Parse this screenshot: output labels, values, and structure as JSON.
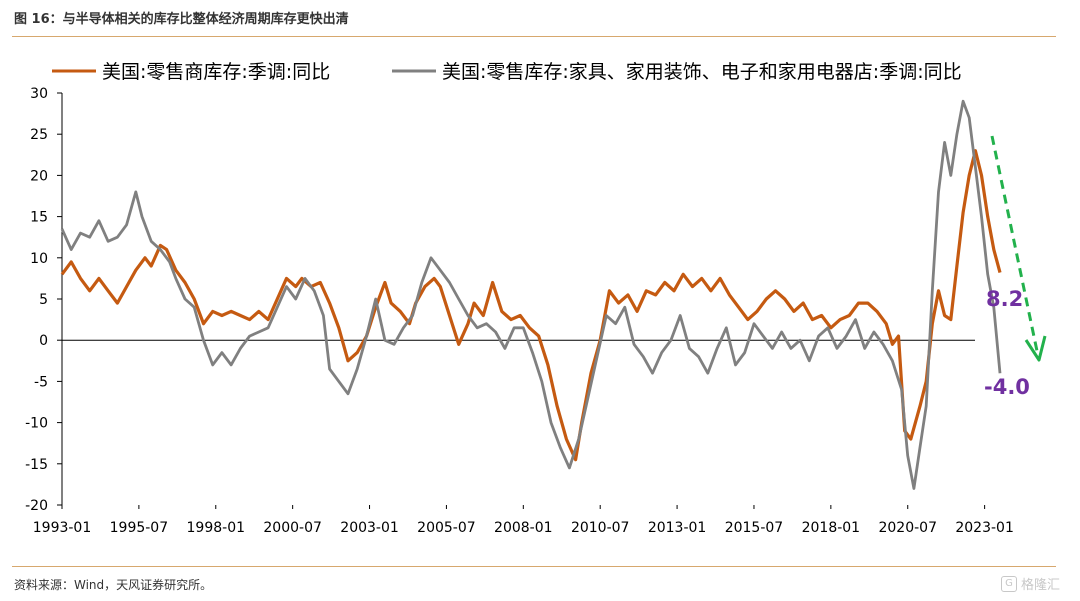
{
  "figure_title": "图 16：与半导体相关的库存比整体经济周期库存更快出清",
  "source": "资料来源：Wind，天风证券研究所。",
  "watermark": "格隆汇",
  "colors": {
    "series_orange": "#c55a11",
    "series_gray": "#808080",
    "arrow": "#22b14c",
    "annotation": "#7030a0",
    "rule": "#d7a86e"
  },
  "icons": {
    "watermark_logo": "glh-logo-icon"
  },
  "chart_data": {
    "type": "line",
    "title": "",
    "xlabel": "",
    "ylabel": "",
    "x_range": [
      1993.0,
      2023.5
    ],
    "ylim": [
      -20,
      30
    ],
    "y_ticks": [
      30,
      25,
      20,
      15,
      10,
      5,
      0,
      -5,
      -10,
      -15,
      -20
    ],
    "x_tick_labels": [
      "1993-01",
      "1995-07",
      "1998-01",
      "2000-07",
      "2003-01",
      "2005-07",
      "2008-01",
      "2010-07",
      "2013-01",
      "2015-07",
      "2018-01",
      "2020-07",
      "2023-01"
    ],
    "legend_position": "top",
    "grid": false,
    "series": [
      {
        "name": "美国:零售商库存:季调:同比",
        "color": "#c55a11",
        "points": [
          [
            1993.0,
            8
          ],
          [
            1993.3,
            9.5
          ],
          [
            1993.6,
            7.5
          ],
          [
            1993.9,
            6
          ],
          [
            1994.2,
            7.5
          ],
          [
            1994.5,
            6
          ],
          [
            1994.8,
            4.5
          ],
          [
            1995.1,
            6.5
          ],
          [
            1995.4,
            8.5
          ],
          [
            1995.7,
            10
          ],
          [
            1995.9,
            9
          ],
          [
            1996.2,
            11.5
          ],
          [
            1996.4,
            11
          ],
          [
            1996.7,
            8.5
          ],
          [
            1997.0,
            7
          ],
          [
            1997.3,
            5
          ],
          [
            1997.6,
            2
          ],
          [
            1997.9,
            3.5
          ],
          [
            1998.2,
            3
          ],
          [
            1998.5,
            3.5
          ],
          [
            1998.8,
            3
          ],
          [
            1999.1,
            2.5
          ],
          [
            1999.4,
            3.5
          ],
          [
            1999.7,
            2.5
          ],
          [
            2000.0,
            5
          ],
          [
            2000.3,
            7.5
          ],
          [
            2000.6,
            6.5
          ],
          [
            2000.8,
            7.5
          ],
          [
            2001.1,
            6.5
          ],
          [
            2001.4,
            7
          ],
          [
            2001.7,
            4.5
          ],
          [
            2002.0,
            1.5
          ],
          [
            2002.3,
            -2.5
          ],
          [
            2002.6,
            -1.5
          ],
          [
            2002.9,
            0.5
          ],
          [
            2003.2,
            4
          ],
          [
            2003.5,
            7
          ],
          [
            2003.7,
            4.5
          ],
          [
            2004.0,
            3.5
          ],
          [
            2004.3,
            2
          ],
          [
            2004.5,
            4.5
          ],
          [
            2004.8,
            6.5
          ],
          [
            2005.1,
            7.5
          ],
          [
            2005.3,
            6.5
          ],
          [
            2005.6,
            3
          ],
          [
            2005.9,
            -0.5
          ],
          [
            2006.2,
            2
          ],
          [
            2006.4,
            4.5
          ],
          [
            2006.7,
            3
          ],
          [
            2007.0,
            7
          ],
          [
            2007.3,
            3.5
          ],
          [
            2007.6,
            2.5
          ],
          [
            2007.9,
            3
          ],
          [
            2008.2,
            1.5
          ],
          [
            2008.5,
            0.5
          ],
          [
            2008.8,
            -3
          ],
          [
            2009.1,
            -8
          ],
          [
            2009.4,
            -12
          ],
          [
            2009.7,
            -14.5
          ],
          [
            2009.9,
            -10
          ],
          [
            2010.2,
            -4
          ],
          [
            2010.5,
            0
          ],
          [
            2010.8,
            6
          ],
          [
            2011.1,
            4.5
          ],
          [
            2011.4,
            5.5
          ],
          [
            2011.7,
            3.5
          ],
          [
            2012.0,
            6
          ],
          [
            2012.3,
            5.5
          ],
          [
            2012.6,
            7
          ],
          [
            2012.9,
            6
          ],
          [
            2013.2,
            8
          ],
          [
            2013.5,
            6.5
          ],
          [
            2013.8,
            7.5
          ],
          [
            2014.1,
            6
          ],
          [
            2014.4,
            7.5
          ],
          [
            2014.7,
            5.5
          ],
          [
            2015.0,
            4
          ],
          [
            2015.3,
            2.5
          ],
          [
            2015.6,
            3.5
          ],
          [
            2015.9,
            5
          ],
          [
            2016.2,
            6
          ],
          [
            2016.5,
            5
          ],
          [
            2016.8,
            3.5
          ],
          [
            2017.1,
            4.5
          ],
          [
            2017.4,
            2.5
          ],
          [
            2017.7,
            3
          ],
          [
            2018.0,
            1.5
          ],
          [
            2018.3,
            2.5
          ],
          [
            2018.6,
            3
          ],
          [
            2018.9,
            4.5
          ],
          [
            2019.2,
            4.5
          ],
          [
            2019.5,
            3.5
          ],
          [
            2019.8,
            2
          ],
          [
            2020.0,
            -0.5
          ],
          [
            2020.2,
            0.5
          ],
          [
            2020.4,
            -11
          ],
          [
            2020.6,
            -12
          ],
          [
            2020.9,
            -8
          ],
          [
            2021.1,
            -5
          ],
          [
            2021.3,
            2
          ],
          [
            2021.5,
            6
          ],
          [
            2021.7,
            3
          ],
          [
            2021.9,
            2.5
          ],
          [
            2022.1,
            9
          ],
          [
            2022.3,
            15.5
          ],
          [
            2022.5,
            20
          ],
          [
            2022.7,
            23
          ],
          [
            2022.9,
            20
          ],
          [
            2023.1,
            15
          ],
          [
            2023.3,
            11
          ],
          [
            2023.5,
            8.2
          ]
        ]
      },
      {
        "name": "美国:零售库存:家具、家用装饰、电子和家用电器店:季调:同比",
        "color": "#808080",
        "points": [
          [
            1993.0,
            13.5
          ],
          [
            1993.3,
            11
          ],
          [
            1993.6,
            13
          ],
          [
            1993.9,
            12.5
          ],
          [
            1994.2,
            14.5
          ],
          [
            1994.5,
            12
          ],
          [
            1994.8,
            12.5
          ],
          [
            1995.1,
            14
          ],
          [
            1995.4,
            18
          ],
          [
            1995.6,
            15
          ],
          [
            1995.9,
            12
          ],
          [
            1996.2,
            11
          ],
          [
            1996.5,
            9.5
          ],
          [
            1996.7,
            7.5
          ],
          [
            1997.0,
            5
          ],
          [
            1997.3,
            4
          ],
          [
            1997.6,
            0
          ],
          [
            1997.9,
            -3
          ],
          [
            1998.2,
            -1.5
          ],
          [
            1998.5,
            -3
          ],
          [
            1998.8,
            -1
          ],
          [
            1999.1,
            0.5
          ],
          [
            1999.4,
            1
          ],
          [
            1999.7,
            1.5
          ],
          [
            2000.0,
            4
          ],
          [
            2000.3,
            6.5
          ],
          [
            2000.6,
            5
          ],
          [
            2000.9,
            7.5
          ],
          [
            2001.2,
            6
          ],
          [
            2001.5,
            3
          ],
          [
            2001.7,
            -3.5
          ],
          [
            2002.0,
            -5
          ],
          [
            2002.3,
            -6.5
          ],
          [
            2002.6,
            -3.5
          ],
          [
            2002.9,
            0.5
          ],
          [
            2003.2,
            5
          ],
          [
            2003.5,
            0
          ],
          [
            2003.8,
            -0.5
          ],
          [
            2004.1,
            1.5
          ],
          [
            2004.4,
            3
          ],
          [
            2004.7,
            7
          ],
          [
            2005.0,
            10
          ],
          [
            2005.3,
            8.5
          ],
          [
            2005.6,
            7
          ],
          [
            2005.9,
            5
          ],
          [
            2006.2,
            3
          ],
          [
            2006.5,
            1.5
          ],
          [
            2006.8,
            2
          ],
          [
            2007.1,
            1
          ],
          [
            2007.4,
            -1
          ],
          [
            2007.7,
            1.5
          ],
          [
            2008.0,
            1.5
          ],
          [
            2008.3,
            -1.5
          ],
          [
            2008.6,
            -5
          ],
          [
            2008.9,
            -10
          ],
          [
            2009.2,
            -13
          ],
          [
            2009.5,
            -15.5
          ],
          [
            2009.8,
            -12
          ],
          [
            2010.1,
            -7
          ],
          [
            2010.4,
            -2
          ],
          [
            2010.7,
            3
          ],
          [
            2011.0,
            2
          ],
          [
            2011.3,
            4
          ],
          [
            2011.6,
            -0.5
          ],
          [
            2011.9,
            -2
          ],
          [
            2012.2,
            -4
          ],
          [
            2012.5,
            -1.5
          ],
          [
            2012.8,
            0
          ],
          [
            2013.1,
            3
          ],
          [
            2013.4,
            -1
          ],
          [
            2013.7,
            -2
          ],
          [
            2014.0,
            -4
          ],
          [
            2014.3,
            -1
          ],
          [
            2014.6,
            1.5
          ],
          [
            2014.9,
            -3
          ],
          [
            2015.2,
            -1.5
          ],
          [
            2015.5,
            2
          ],
          [
            2015.8,
            0.5
          ],
          [
            2016.1,
            -1
          ],
          [
            2016.4,
            1
          ],
          [
            2016.7,
            -1
          ],
          [
            2017.0,
            0
          ],
          [
            2017.3,
            -2.5
          ],
          [
            2017.6,
            0.5
          ],
          [
            2017.9,
            1.5
          ],
          [
            2018.2,
            -1
          ],
          [
            2018.5,
            0.5
          ],
          [
            2018.8,
            2.5
          ],
          [
            2019.1,
            -1
          ],
          [
            2019.4,
            1
          ],
          [
            2019.7,
            -0.5
          ],
          [
            2020.0,
            -2.5
          ],
          [
            2020.3,
            -6
          ],
          [
            2020.5,
            -14
          ],
          [
            2020.7,
            -18
          ],
          [
            2020.9,
            -13
          ],
          [
            2021.1,
            -8
          ],
          [
            2021.3,
            6
          ],
          [
            2021.5,
            18
          ],
          [
            2021.7,
            24
          ],
          [
            2021.9,
            20
          ],
          [
            2022.1,
            25
          ],
          [
            2022.3,
            29
          ],
          [
            2022.5,
            27
          ],
          [
            2022.7,
            21
          ],
          [
            2022.9,
            15
          ],
          [
            2023.1,
            8
          ],
          [
            2023.3,
            4
          ],
          [
            2023.5,
            -4
          ]
        ]
      }
    ],
    "annotations": [
      {
        "text": "8.2",
        "color": "#7030a0"
      },
      {
        "text": "-4.0",
        "color": "#7030a0"
      }
    ]
  }
}
